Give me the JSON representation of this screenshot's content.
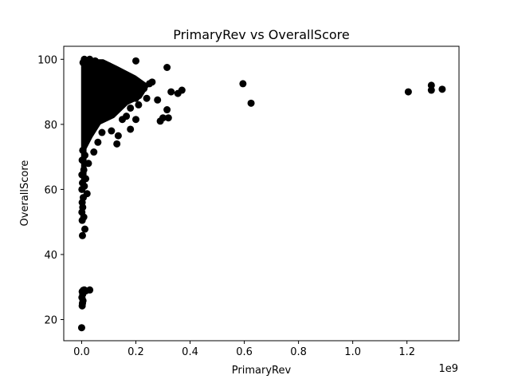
{
  "chart_data": {
    "type": "scatter",
    "title": "PrimaryRev vs OverallScore",
    "xlabel": "PrimaryRev",
    "ylabel": "OverallScore",
    "x_offset_label": "1e9",
    "x_ticks": [
      0.0,
      0.2,
      0.4,
      0.6,
      0.8,
      1.0,
      1.2
    ],
    "x_tick_labels": [
      "0.0",
      "0.2",
      "0.4",
      "0.6",
      "0.8",
      "1.0",
      "1.2"
    ],
    "y_ticks": [
      20,
      40,
      60,
      80,
      100
    ],
    "y_tick_labels": [
      "20",
      "40",
      "60",
      "80",
      "100"
    ],
    "xlim": [
      -0.066,
      1.392
    ],
    "ylim": [
      13.5,
      104
    ],
    "grid": false,
    "legend": "none",
    "marker_color": "#000000",
    "series": [
      {
        "points": [
          [
            0.0,
            17.5
          ],
          [
            0.002,
            24.2
          ],
          [
            0.003,
            25.0
          ],
          [
            0.005,
            25.8
          ],
          [
            0.001,
            26.8
          ],
          [
            0.004,
            27.8
          ],
          [
            0.002,
            28.6
          ],
          [
            0.006,
            29.0
          ],
          [
            0.01,
            29.1
          ],
          [
            0.03,
            29.1
          ],
          [
            0.015,
            28.8
          ],
          [
            0.003,
            45.8
          ],
          [
            0.012,
            47.8
          ],
          [
            0.002,
            50.5
          ],
          [
            0.008,
            51.5
          ],
          [
            0.001,
            53.0
          ],
          [
            0.004,
            54.5
          ],
          [
            0.002,
            56.0
          ],
          [
            0.006,
            57.5
          ],
          [
            0.02,
            58.7
          ],
          [
            0.001,
            60.0
          ],
          [
            0.01,
            61.0
          ],
          [
            0.003,
            62.0
          ],
          [
            0.015,
            63.3
          ],
          [
            0.001,
            64.5
          ],
          [
            0.008,
            66.0
          ],
          [
            0.025,
            68.0
          ],
          [
            0.002,
            69.0
          ],
          [
            0.012,
            70.5
          ],
          [
            0.004,
            72.0
          ],
          [
            0.045,
            71.5
          ],
          [
            0.06,
            74.5
          ],
          [
            0.075,
            77.5
          ],
          [
            0.11,
            78.0
          ],
          [
            0.13,
            74.0
          ],
          [
            0.135,
            76.5
          ],
          [
            0.15,
            81.5
          ],
          [
            0.165,
            82.5
          ],
          [
            0.18,
            78.5
          ],
          [
            0.2,
            81.5
          ],
          [
            0.21,
            86.0
          ],
          [
            0.24,
            88.0
          ],
          [
            0.26,
            93.0
          ],
          [
            0.28,
            87.5
          ],
          [
            0.29,
            81.0
          ],
          [
            0.3,
            82.0
          ],
          [
            0.315,
            84.5
          ],
          [
            0.32,
            82.0
          ],
          [
            0.33,
            90.0
          ],
          [
            0.315,
            97.5
          ],
          [
            0.355,
            89.5
          ],
          [
            0.37,
            90.5
          ],
          [
            0.2,
            99.5
          ],
          [
            0.16,
            95.0
          ],
          [
            0.14,
            92.5
          ],
          [
            0.12,
            96.0
          ],
          [
            0.1,
            98.0
          ],
          [
            0.08,
            97.0
          ],
          [
            0.05,
            99.5
          ],
          [
            0.03,
            100.0
          ],
          [
            0.01,
            100.0
          ],
          [
            0.005,
            99.0
          ],
          [
            0.19,
            90.0
          ],
          [
            0.23,
            91.0
          ],
          [
            0.25,
            92.5
          ],
          [
            0.18,
            85.0
          ],
          [
            0.2,
            88.0
          ],
          [
            0.15,
            86.0
          ],
          [
            0.09,
            84.0
          ],
          [
            0.07,
            82.0
          ],
          [
            0.595,
            92.5
          ],
          [
            0.625,
            86.5
          ],
          [
            1.205,
            90.0
          ],
          [
            1.29,
            92.0
          ],
          [
            1.29,
            90.5
          ],
          [
            1.33,
            90.8
          ]
        ]
      }
    ],
    "dense_region": {
      "x_range": [
        0.0,
        0.25
      ],
      "y_range": [
        72,
        100
      ],
      "note_visible": false
    }
  }
}
